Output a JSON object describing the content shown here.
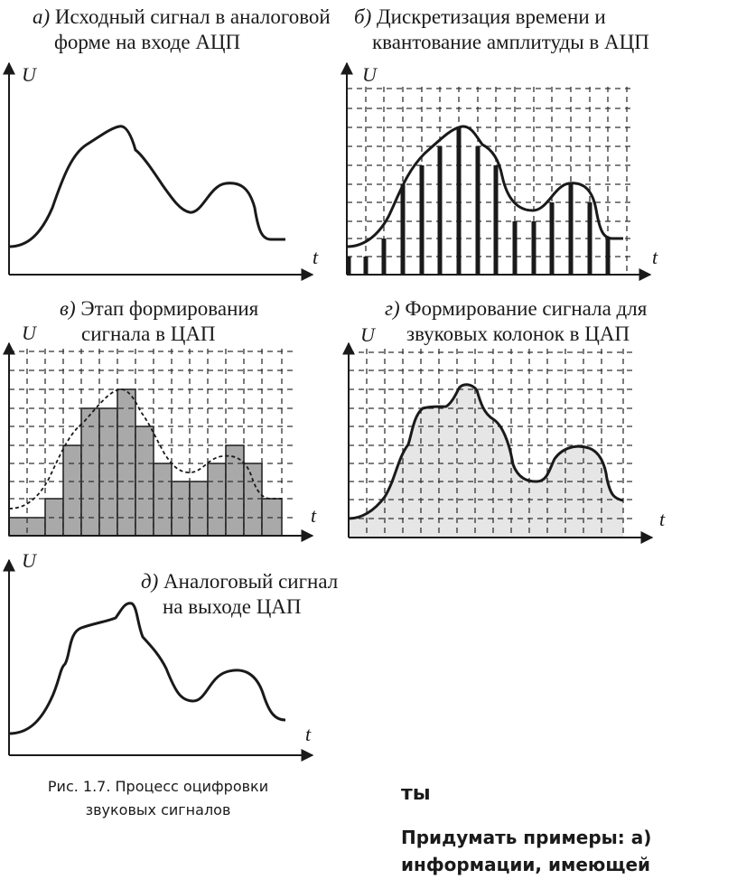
{
  "panels": {
    "a": {
      "letter": "а)",
      "title_line1": "Исходный сигнал в аналоговой",
      "title_line2": "форме на входе АЦП"
    },
    "b": {
      "letter": "б)",
      "title_line1": "Дискретизация времени и",
      "title_line2": "квантование амплитуды в АЦП"
    },
    "v": {
      "letter": "в)",
      "title_line1": "Этап формирования",
      "title_line2": "сигнала в ЦАП"
    },
    "g": {
      "letter": "г)",
      "title_line1": "Формирование сигнала для",
      "title_line2": "звуковых колонок в ЦАП"
    },
    "d": {
      "letter": "д)",
      "title_line1": "Аналоговый сигнал",
      "title_line2": "на выходе ЦАП"
    }
  },
  "axis": {
    "y": "U",
    "x": "t"
  },
  "figure_caption": {
    "line1": "Рис. 1.7. Процесс оцифровки",
    "line2": "звуковых сигналов"
  },
  "side_text": {
    "heading": "ты",
    "line1": "Придумать примеры: а)",
    "line2": "информации, имеющей"
  },
  "colors": {
    "ink": "#1a1a1a",
    "dac_bars": "#a9a9a9",
    "dac_fill": "#e6e6e6",
    "grid": "#333333"
  }
}
